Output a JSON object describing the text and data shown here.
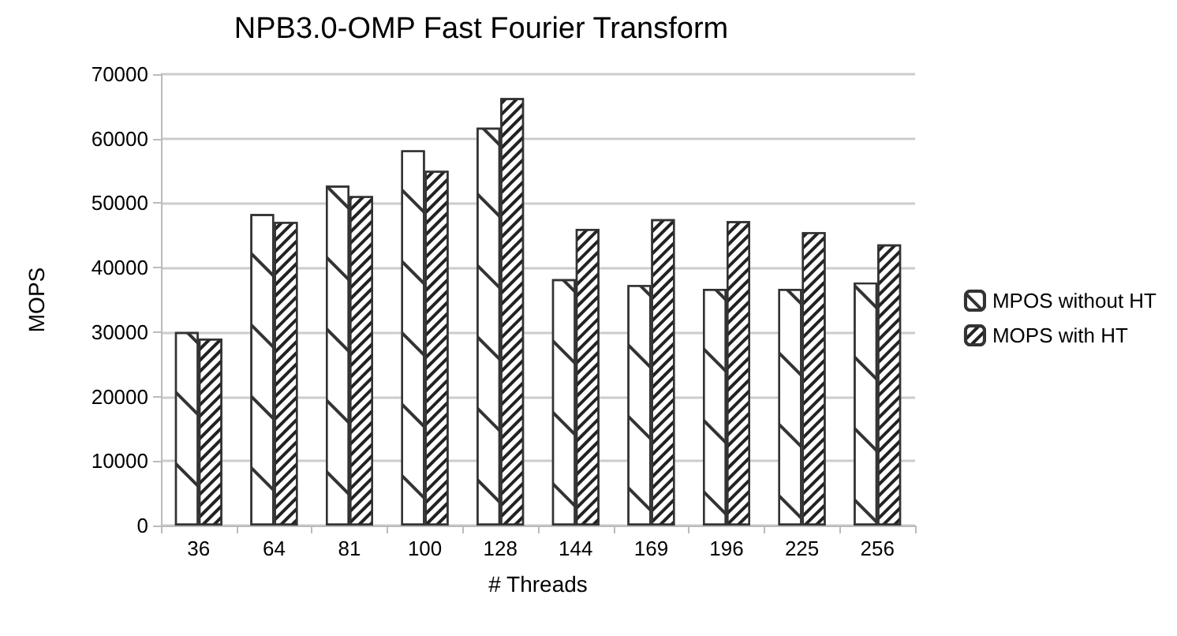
{
  "chart_data": {
    "type": "bar",
    "title": "NPB3.0-OMP Fast Fourier Transform",
    "xlabel": "# Threads",
    "ylabel": "MOPS",
    "categories": [
      "36",
      "64",
      "81",
      "100",
      "128",
      "144",
      "169",
      "196",
      "225",
      "256"
    ],
    "series": [
      {
        "name": "MPOS without HT",
        "color": "#ffffff",
        "values": [
          30000,
          48300,
          52700,
          58200,
          61700,
          38200,
          37300,
          36700,
          36700,
          37700
        ]
      },
      {
        "name": "MOPS with HT",
        "color": "#ffffff",
        "values": [
          29000,
          47100,
          51100,
          55000,
          66300,
          46000,
          47500,
          47200,
          45500,
          43600
        ]
      }
    ],
    "ylim": [
      0,
      70000
    ],
    "yticks": [
      0,
      10000,
      20000,
      30000,
      40000,
      50000,
      60000,
      70000
    ],
    "grid": "y",
    "legend": "right"
  }
}
